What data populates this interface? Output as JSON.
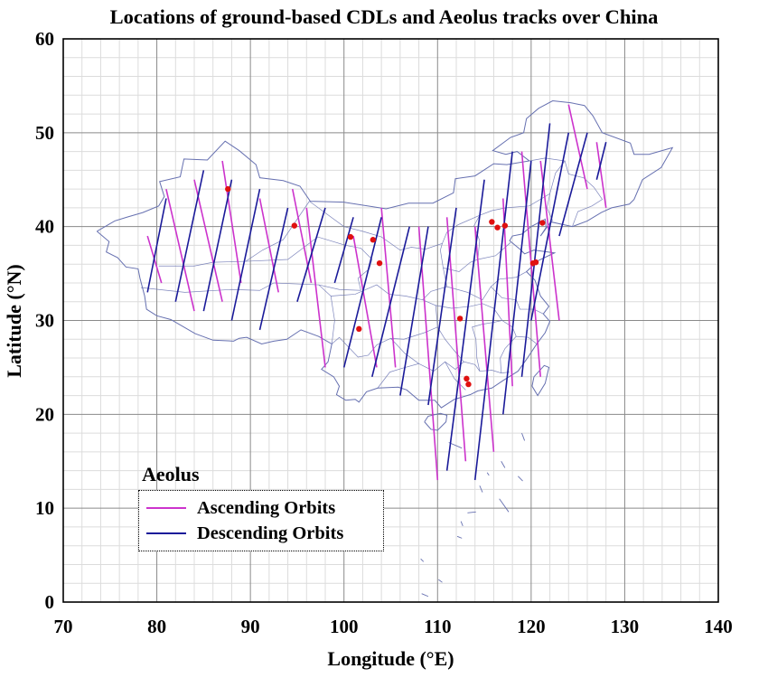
{
  "title": "Locations of ground-based CDLs and Aeolus tracks over China",
  "xlabel": "Longitude (°E)",
  "ylabel": "Latitude (°N)",
  "xticks": [
    "70",
    "80",
    "90",
    "100",
    "110",
    "120",
    "130",
    "140"
  ],
  "yticks": [
    "0",
    "10",
    "20",
    "30",
    "40",
    "50",
    "60"
  ],
  "colors": {
    "ascending": "#cc33cc",
    "descending": "#1a1a99",
    "site": "#e01010",
    "border": "#6670b0"
  },
  "legend": {
    "title": "Aeolus",
    "items": [
      {
        "label": "Ascending Orbits",
        "type": "ascending"
      },
      {
        "label": "Descending Orbits",
        "type": "descending"
      }
    ]
  },
  "chart_data": {
    "type": "map",
    "xlim": [
      70,
      140
    ],
    "ylim": [
      0,
      60
    ],
    "grid": true,
    "legend_position": "bottom-left",
    "series": [
      {
        "name": "Ascending Orbits",
        "tracks": [
          [
            [
              79,
              39
            ],
            [
              80.5,
              34
            ]
          ],
          [
            [
              81,
              44
            ],
            [
              84,
              31
            ]
          ],
          [
            [
              84,
              45
            ],
            [
              87,
              32
            ]
          ],
          [
            [
              87,
              47
            ],
            [
              89,
              34
            ]
          ],
          [
            [
              91,
              43
            ],
            [
              93,
              33
            ]
          ],
          [
            [
              94.5,
              44
            ],
            [
              96.5,
              34
            ]
          ],
          [
            [
              96,
              42
            ],
            [
              98,
              25
            ]
          ],
          [
            [
              101,
              39
            ],
            [
              103.5,
              25
            ]
          ],
          [
            [
              104,
              42
            ],
            [
              105.5,
              25
            ]
          ],
          [
            [
              108,
              40
            ],
            [
              110,
              13
            ]
          ],
          [
            [
              111,
              41
            ],
            [
              113,
              15
            ]
          ],
          [
            [
              114,
              40
            ],
            [
              116,
              16
            ]
          ],
          [
            [
              117,
              43
            ],
            [
              118,
              23
            ]
          ],
          [
            [
              119,
              48
            ],
            [
              121,
              24
            ]
          ],
          [
            [
              121,
              47
            ],
            [
              123,
              30
            ]
          ],
          [
            [
              124,
              53
            ],
            [
              126,
              44
            ]
          ],
          [
            [
              127,
              49
            ],
            [
              128,
              42
            ]
          ]
        ]
      },
      {
        "name": "Descending Orbits",
        "tracks": [
          [
            [
              79,
              33
            ],
            [
              81,
              43
            ]
          ],
          [
            [
              82,
              32
            ],
            [
              85,
              46
            ]
          ],
          [
            [
              85,
              31
            ],
            [
              88,
              45
            ]
          ],
          [
            [
              88,
              30
            ],
            [
              91,
              44
            ]
          ],
          [
            [
              91,
              29
            ],
            [
              94,
              42
            ]
          ],
          [
            [
              95,
              32
            ],
            [
              98,
              42
            ]
          ],
          [
            [
              99,
              34
            ],
            [
              101,
              41
            ]
          ],
          [
            [
              100,
              25
            ],
            [
              104,
              41
            ]
          ],
          [
            [
              103,
              24
            ],
            [
              107,
              40
            ]
          ],
          [
            [
              106,
              22
            ],
            [
              109,
              40
            ]
          ],
          [
            [
              109,
              21
            ],
            [
              112,
              42
            ]
          ],
          [
            [
              111,
              14
            ],
            [
              115,
              45
            ]
          ],
          [
            [
              114,
              13
            ],
            [
              118,
              48
            ]
          ],
          [
            [
              117,
              20
            ],
            [
              120,
              47
            ]
          ],
          [
            [
              119,
              24
            ],
            [
              122,
              51
            ]
          ],
          [
            [
              120,
              30
            ],
            [
              124,
              50
            ]
          ],
          [
            [
              123,
              39
            ],
            [
              126,
              50
            ]
          ],
          [
            [
              127,
              45
            ],
            [
              128,
              49
            ]
          ]
        ]
      }
    ],
    "sites": [
      [
        87.6,
        44
      ],
      [
        94.7,
        40.1
      ],
      [
        100.7,
        38.9
      ],
      [
        103.1,
        38.6
      ],
      [
        103.8,
        36.1
      ],
      [
        101.6,
        29.1
      ],
      [
        112.4,
        30.2
      ],
      [
        113.1,
        23.8
      ],
      [
        113.3,
        23.2
      ],
      [
        115.8,
        40.5
      ],
      [
        116.4,
        39.9
      ],
      [
        117.2,
        40.1
      ],
      [
        121.2,
        40.4
      ],
      [
        120.2,
        36.1
      ],
      [
        120.5,
        36.2
      ]
    ]
  }
}
